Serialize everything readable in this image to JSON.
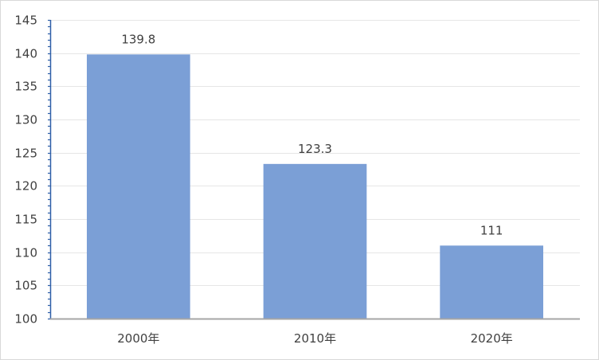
{
  "chart_data": {
    "type": "bar",
    "title": "",
    "xlabel": "",
    "ylabel": "",
    "categories": [
      "2000年",
      "2010年",
      "2020年"
    ],
    "values": [
      139.8,
      123.3,
      111
    ],
    "data_labels": [
      "139.8",
      "123.3",
      "111"
    ],
    "ylim": [
      100,
      145
    ],
    "yticks": [
      100,
      105,
      110,
      115,
      120,
      125,
      130,
      135,
      140,
      145
    ],
    "ytick_labels": [
      "100",
      "105",
      "110",
      "115",
      "120",
      "125",
      "130",
      "135",
      "140",
      "145"
    ],
    "grid": true,
    "legend": "none",
    "colors": {
      "bar": "#7b9fd6",
      "gridline": "#e6e6e6",
      "axis": "#a6a6a6",
      "y_axis_line": "#2e5fa8",
      "text": "#404040"
    }
  }
}
